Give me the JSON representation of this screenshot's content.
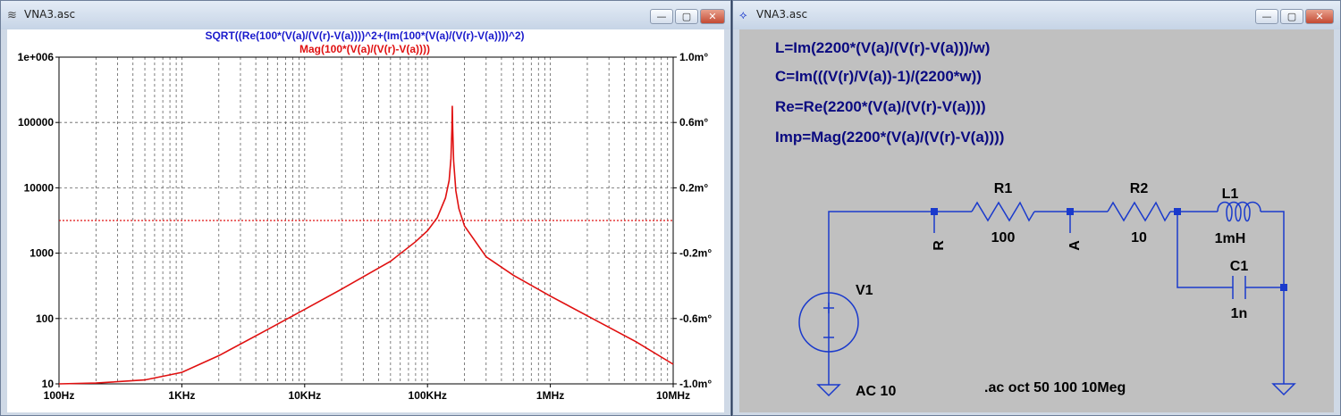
{
  "plot_window": {
    "title": "VNA3.asc",
    "icon": "waveform-icon",
    "controls": {
      "minimize": "—",
      "maximize": "▢",
      "close": "✕"
    },
    "trace_titles": [
      {
        "text": "SQRT((Re(100*(V(a)/(V(r)-V(a))))^2+(Im(100*(V(a)/(V(r)-V(a))))^2)",
        "color": "#1a1acc"
      },
      {
        "text": "Mag(100*(V(a)/(V(r)-V(a))))",
        "color": "#e01010"
      }
    ]
  },
  "chart_data": {
    "type": "line",
    "x_scale": "log",
    "y_scale": "log",
    "xlim": [
      100,
      10000000
    ],
    "ylim": [
      10,
      1000000
    ],
    "y2lim": [
      -1.0,
      1.0
    ],
    "x_ticks": [
      "100Hz",
      "1KHz",
      "10KHz",
      "100KHz",
      "1MHz",
      "10MHz"
    ],
    "y_ticks": [
      "10",
      "100",
      "1000",
      "10000",
      "100000",
      "1e+006"
    ],
    "y2_ticks": [
      "-1.0m°",
      "-0.6m°",
      "-0.2m°",
      "0.2m°",
      "0.6m°",
      "1.0m°"
    ],
    "grid": true,
    "series": [
      {
        "name": "Mag(100*(V(a)/(V(r)-V(a))))",
        "color": "#e01010",
        "style": "solid",
        "x": [
          100,
          200,
          500,
          1000,
          2000,
          5000,
          10000,
          20000,
          50000,
          80000,
          100000,
          120000,
          140000,
          150000,
          155000,
          158000,
          159155,
          160500,
          163000,
          170000,
          180000,
          200000,
          300000,
          500000,
          1000000,
          2000000,
          5000000,
          10000000
        ],
        "y": [
          10,
          10.3,
          11.5,
          15,
          27,
          68,
          138,
          282,
          750,
          1500,
          2200,
          3500,
          7000,
          13000,
          28000,
          80000,
          180000,
          80000,
          26000,
          9000,
          4800,
          2600,
          880,
          460,
          220,
          110,
          44,
          20
        ]
      },
      {
        "name": "phase",
        "color": "#e01010",
        "style": "dotted",
        "axis": "y2",
        "x": [
          100,
          10000000
        ],
        "y": [
          0,
          0
        ]
      }
    ]
  },
  "schematic_window": {
    "title": "VNA3.asc",
    "icon": "schematic-icon",
    "controls": {
      "minimize": "—",
      "maximize": "▢",
      "close": "✕"
    },
    "directives": [
      "L=Im(2200*(V(a)/(V(r)-V(a)))/w)",
      "C=Im(((V(r)/V(a))-1)/(2200*w))",
      "Re=Re(2200*(V(a)/(V(r)-V(a))))",
      "Imp=Mag(2200*(V(a)/(V(r)-V(a))))"
    ],
    "components": {
      "r1": {
        "name": "R1",
        "value": "100"
      },
      "r2": {
        "name": "R2",
        "value": "10"
      },
      "l1": {
        "name": "L1",
        "value": "1mH"
      },
      "c1": {
        "name": "C1",
        "value": "1n"
      },
      "v1": {
        "name": "V1",
        "value": "AC 10"
      }
    },
    "net_labels": {
      "r": "R",
      "a": "A"
    },
    "sim_command": ".ac oct 50 100 10Meg",
    "colors": {
      "wire": "#1a3acc",
      "text": "#0a0a80",
      "node": "#1a3acc"
    }
  }
}
